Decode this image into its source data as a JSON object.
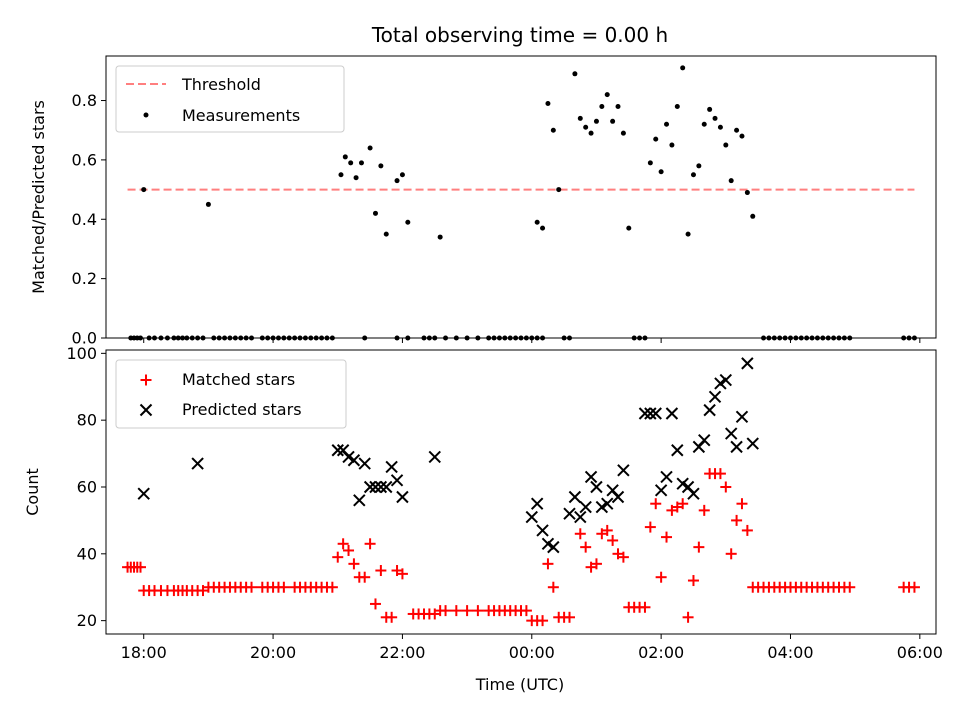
{
  "chart_data": [
    {
      "type": "scatter",
      "title": "Total observing time = 0.00 h",
      "ylabel": "Matched/Predicted stars",
      "xlabel": "",
      "xlim": [
        "17:25",
        "30:15"
      ],
      "ylim": [
        0,
        0.95
      ],
      "yticks": [
        "0.0",
        "0.2",
        "0.4",
        "0.6",
        "0.8"
      ],
      "legend": "upper-left",
      "threshold": {
        "name": "Threshold",
        "value": 0.5,
        "x_range": [
          "17:45",
          "29:55"
        ],
        "color": "#ff7f7f"
      },
      "series": [
        {
          "name": "Measurements",
          "color": "#000000",
          "points": [
            [
              "18:00",
              0.5
            ],
            [
              "19:00",
              0.45
            ],
            [
              "21:03",
              0.55
            ],
            [
              "21:07",
              0.61
            ],
            [
              "21:12",
              0.59
            ],
            [
              "21:17",
              0.54
            ],
            [
              "21:22",
              0.59
            ],
            [
              "21:30",
              0.64
            ],
            [
              "21:35",
              0.42
            ],
            [
              "21:40",
              0.58
            ],
            [
              "21:45",
              0.35
            ],
            [
              "21:55",
              0.53
            ],
            [
              "22:00",
              0.55
            ],
            [
              "22:05",
              0.39
            ],
            [
              "22:35",
              0.34
            ],
            [
              "00:05",
              0.39
            ],
            [
              "00:10",
              0.37
            ],
            [
              "00:15",
              0.79
            ],
            [
              "00:20",
              0.7
            ],
            [
              "00:25",
              0.5
            ],
            [
              "00:40",
              0.89
            ],
            [
              "00:45",
              0.74
            ],
            [
              "00:50",
              0.71
            ],
            [
              "00:55",
              0.69
            ],
            [
              "01:00",
              0.73
            ],
            [
              "01:05",
              0.78
            ],
            [
              "01:10",
              0.82
            ],
            [
              "01:15",
              0.73
            ],
            [
              "01:20",
              0.78
            ],
            [
              "01:25",
              0.69
            ],
            [
              "01:30",
              0.37
            ],
            [
              "01:50",
              0.59
            ],
            [
              "01:55",
              0.67
            ],
            [
              "02:00",
              0.56
            ],
            [
              "02:05",
              0.72
            ],
            [
              "02:10",
              0.65
            ],
            [
              "02:15",
              0.78
            ],
            [
              "02:20",
              0.91
            ],
            [
              "02:25",
              0.35
            ],
            [
              "02:30",
              0.55
            ],
            [
              "02:35",
              0.58
            ],
            [
              "02:40",
              0.72
            ],
            [
              "02:45",
              0.77
            ],
            [
              "02:50",
              0.74
            ],
            [
              "02:55",
              0.71
            ],
            [
              "03:00",
              0.65
            ],
            [
              "03:05",
              0.53
            ],
            [
              "03:10",
              0.7
            ],
            [
              "03:15",
              0.68
            ],
            [
              "03:20",
              0.49
            ],
            [
              "03:25",
              0.41
            ]
          ],
          "zero_points": [
            "17:48",
            "17:51",
            "17:54",
            "17:57",
            "18:05",
            "18:10",
            "18:16",
            "18:22",
            "18:28",
            "18:32",
            "18:36",
            "18:40",
            "18:45",
            "18:50",
            "18:55",
            "19:05",
            "19:10",
            "19:15",
            "19:20",
            "19:25",
            "19:30",
            "19:35",
            "19:40",
            "19:50",
            "19:55",
            "20:00",
            "20:05",
            "20:10",
            "20:15",
            "20:20",
            "20:25",
            "20:30",
            "20:35",
            "20:40",
            "20:45",
            "20:50",
            "20:55",
            "21:25",
            "21:55",
            "22:05",
            "22:20",
            "22:25",
            "22:30",
            "22:40",
            "22:50",
            "23:00",
            "23:10",
            "23:20",
            "23:25",
            "23:30",
            "23:35",
            "23:40",
            "23:45",
            "23:50",
            "23:55",
            "00:00",
            "00:05",
            "00:10",
            "00:30",
            "00:35",
            "01:35",
            "01:40",
            "01:45",
            "03:35",
            "03:40",
            "03:45",
            "03:50",
            "03:55",
            "04:00",
            "04:05",
            "04:10",
            "04:15",
            "04:20",
            "04:25",
            "04:30",
            "04:35",
            "04:40",
            "04:45",
            "04:50",
            "04:55",
            "05:45",
            "05:50",
            "05:55"
          ]
        }
      ]
    },
    {
      "type": "scatter",
      "title": "",
      "ylabel": "Count",
      "xlabel": "Time (UTC)",
      "xlim": [
        "17:25",
        "30:15"
      ],
      "ylim": [
        16,
        101
      ],
      "yticks": [
        "20",
        "40",
        "60",
        "80",
        "100"
      ],
      "xticks": [
        "18:00",
        "20:00",
        "22:00",
        "00:00",
        "02:00",
        "04:00",
        "06:00"
      ],
      "legend": "upper-left",
      "series": [
        {
          "name": "Matched stars",
          "marker": "plus",
          "color": "#ff0000",
          "points": [
            [
              "17:45",
              36
            ],
            [
              "17:48",
              36
            ],
            [
              "17:51",
              36
            ],
            [
              "17:54",
              36
            ],
            [
              "17:57",
              36
            ],
            [
              "18:00",
              29
            ],
            [
              "18:05",
              29
            ],
            [
              "18:10",
              29
            ],
            [
              "18:16",
              29
            ],
            [
              "18:22",
              29
            ],
            [
              "18:28",
              29
            ],
            [
              "18:32",
              29
            ],
            [
              "18:36",
              29
            ],
            [
              "18:40",
              29
            ],
            [
              "18:45",
              29
            ],
            [
              "18:50",
              29
            ],
            [
              "18:55",
              29
            ],
            [
              "19:00",
              30
            ],
            [
              "19:05",
              30
            ],
            [
              "19:10",
              30
            ],
            [
              "19:15",
              30
            ],
            [
              "19:20",
              30
            ],
            [
              "19:25",
              30
            ],
            [
              "19:30",
              30
            ],
            [
              "19:35",
              30
            ],
            [
              "19:40",
              30
            ],
            [
              "19:50",
              30
            ],
            [
              "19:55",
              30
            ],
            [
              "20:00",
              30
            ],
            [
              "20:05",
              30
            ],
            [
              "20:10",
              30
            ],
            [
              "20:20",
              30
            ],
            [
              "20:25",
              30
            ],
            [
              "20:30",
              30
            ],
            [
              "20:35",
              30
            ],
            [
              "20:40",
              30
            ],
            [
              "20:45",
              30
            ],
            [
              "20:50",
              30
            ],
            [
              "20:55",
              30
            ],
            [
              "21:00",
              39
            ],
            [
              "21:05",
              43
            ],
            [
              "21:10",
              41
            ],
            [
              "21:15",
              37
            ],
            [
              "21:20",
              33
            ],
            [
              "21:25",
              33
            ],
            [
              "21:30",
              43
            ],
            [
              "21:35",
              25
            ],
            [
              "21:40",
              35
            ],
            [
              "21:45",
              21
            ],
            [
              "21:50",
              21
            ],
            [
              "21:55",
              35
            ],
            [
              "22:00",
              34
            ],
            [
              "22:10",
              22
            ],
            [
              "22:15",
              22
            ],
            [
              "22:20",
              22
            ],
            [
              "22:25",
              22
            ],
            [
              "22:30",
              22
            ],
            [
              "22:35",
              23
            ],
            [
              "22:40",
              23
            ],
            [
              "22:50",
              23
            ],
            [
              "23:00",
              23
            ],
            [
              "23:10",
              23
            ],
            [
              "23:20",
              23
            ],
            [
              "23:25",
              23
            ],
            [
              "23:30",
              23
            ],
            [
              "23:35",
              23
            ],
            [
              "23:40",
              23
            ],
            [
              "23:45",
              23
            ],
            [
              "23:50",
              23
            ],
            [
              "23:55",
              23
            ],
            [
              "00:00",
              20
            ],
            [
              "00:05",
              20
            ],
            [
              "00:10",
              20
            ],
            [
              "00:15",
              37
            ],
            [
              "00:20",
              30
            ],
            [
              "00:25",
              21
            ],
            [
              "00:30",
              21
            ],
            [
              "00:35",
              21
            ],
            [
              "00:45",
              46
            ],
            [
              "00:50",
              42
            ],
            [
              "00:55",
              36
            ],
            [
              "01:00",
              37
            ],
            [
              "01:05",
              46
            ],
            [
              "01:10",
              47
            ],
            [
              "01:15",
              44
            ],
            [
              "01:20",
              40
            ],
            [
              "01:25",
              39
            ],
            [
              "01:30",
              24
            ],
            [
              "01:35",
              24
            ],
            [
              "01:40",
              24
            ],
            [
              "01:45",
              24
            ],
            [
              "01:50",
              48
            ],
            [
              "01:55",
              55
            ],
            [
              "02:00",
              33
            ],
            [
              "02:05",
              45
            ],
            [
              "02:10",
              53
            ],
            [
              "02:15",
              54
            ],
            [
              "02:20",
              55
            ],
            [
              "02:25",
              21
            ],
            [
              "02:30",
              32
            ],
            [
              "02:35",
              42
            ],
            [
              "02:40",
              53
            ],
            [
              "02:45",
              64
            ],
            [
              "02:50",
              64
            ],
            [
              "02:55",
              64
            ],
            [
              "03:00",
              60
            ],
            [
              "03:05",
              40
            ],
            [
              "03:10",
              50
            ],
            [
              "03:15",
              55
            ],
            [
              "03:20",
              47
            ],
            [
              "03:25",
              30
            ],
            [
              "03:30",
              30
            ],
            [
              "03:35",
              30
            ],
            [
              "03:40",
              30
            ],
            [
              "03:45",
              30
            ],
            [
              "03:50",
              30
            ],
            [
              "03:55",
              30
            ],
            [
              "04:00",
              30
            ],
            [
              "04:05",
              30
            ],
            [
              "04:10",
              30
            ],
            [
              "04:15",
              30
            ],
            [
              "04:20",
              30
            ],
            [
              "04:25",
              30
            ],
            [
              "04:30",
              30
            ],
            [
              "04:35",
              30
            ],
            [
              "04:40",
              30
            ],
            [
              "04:45",
              30
            ],
            [
              "04:50",
              30
            ],
            [
              "04:55",
              30
            ],
            [
              "05:45",
              30
            ],
            [
              "05:50",
              30
            ],
            [
              "05:55",
              30
            ]
          ]
        },
        {
          "name": "Predicted stars",
          "marker": "x",
          "color": "#000000",
          "points": [
            [
              "18:00",
              58
            ],
            [
              "18:50",
              67
            ],
            [
              "21:00",
              71
            ],
            [
              "21:05",
              71
            ],
            [
              "21:10",
              69
            ],
            [
              "21:15",
              68
            ],
            [
              "21:20",
              56
            ],
            [
              "21:25",
              67
            ],
            [
              "21:30",
              60
            ],
            [
              "21:35",
              60
            ],
            [
              "21:40",
              60
            ],
            [
              "21:45",
              60
            ],
            [
              "21:50",
              66
            ],
            [
              "21:55",
              62
            ],
            [
              "22:00",
              57
            ],
            [
              "22:30",
              69
            ],
            [
              "00:00",
              51
            ],
            [
              "00:05",
              55
            ],
            [
              "00:10",
              47
            ],
            [
              "00:15",
              43
            ],
            [
              "00:20",
              42
            ],
            [
              "00:35",
              52
            ],
            [
              "00:40",
              57
            ],
            [
              "00:45",
              51
            ],
            [
              "00:50",
              54
            ],
            [
              "00:55",
              63
            ],
            [
              "01:00",
              60
            ],
            [
              "01:05",
              54
            ],
            [
              "01:10",
              55
            ],
            [
              "01:15",
              59
            ],
            [
              "01:20",
              57
            ],
            [
              "01:25",
              65
            ],
            [
              "01:45",
              82
            ],
            [
              "01:50",
              82
            ],
            [
              "01:55",
              82
            ],
            [
              "02:00",
              59
            ],
            [
              "02:05",
              63
            ],
            [
              "02:10",
              82
            ],
            [
              "02:15",
              71
            ],
            [
              "02:20",
              61
            ],
            [
              "02:25",
              60
            ],
            [
              "02:30",
              58
            ],
            [
              "02:35",
              72
            ],
            [
              "02:40",
              74
            ],
            [
              "02:45",
              83
            ],
            [
              "02:50",
              87
            ],
            [
              "02:55",
              91
            ],
            [
              "03:00",
              92
            ],
            [
              "03:05",
              76
            ],
            [
              "03:10",
              72
            ],
            [
              "03:15",
              81
            ],
            [
              "03:20",
              97
            ],
            [
              "03:25",
              73
            ]
          ]
        }
      ]
    }
  ]
}
